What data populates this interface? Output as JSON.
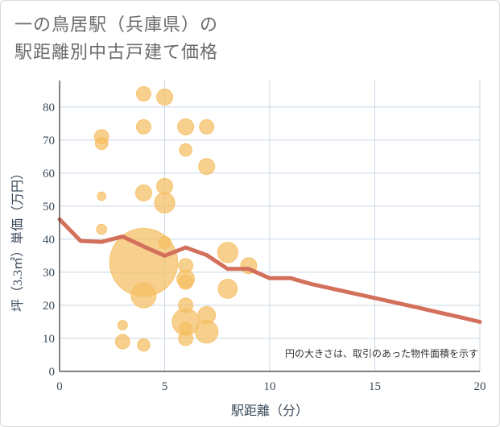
{
  "title_lines": [
    "一の鳥居駅（兵庫県）の",
    "駅距離別中古戸建て価格"
  ],
  "colors": {
    "bubble": "#f5be62",
    "line": "#d3705c",
    "grid": "#c9d8e6",
    "axis": "#333333"
  },
  "chart_data": {
    "type": "scatter",
    "title": "一の鳥居駅（兵庫県）の駅距離別中古戸建て価格",
    "xlabel": "駅距離（分）",
    "ylabel": "坪（3.3㎡）単価（万円）",
    "xlim": [
      0,
      20
    ],
    "ylim": [
      0,
      88
    ],
    "x_ticks": [
      0,
      5,
      10,
      15,
      20
    ],
    "y_ticks": [
      0,
      10,
      20,
      30,
      40,
      50,
      60,
      70,
      80
    ],
    "note": "円の大きさは、取引のあった物件面積を示す",
    "bubbles": [
      {
        "x": 2,
        "y": 71,
        "size": 2
      },
      {
        "x": 2,
        "y": 69,
        "size": 1.5
      },
      {
        "x": 2,
        "y": 53,
        "size": 0.7
      },
      {
        "x": 2,
        "y": 43,
        "size": 1
      },
      {
        "x": 3,
        "y": 14,
        "size": 0.9
      },
      {
        "x": 3,
        "y": 9,
        "size": 2
      },
      {
        "x": 4,
        "y": 84,
        "size": 2
      },
      {
        "x": 4,
        "y": 74,
        "size": 2
      },
      {
        "x": 4,
        "y": 54,
        "size": 2.5
      },
      {
        "x": 4,
        "y": 33,
        "size": 45
      },
      {
        "x": 4,
        "y": 23,
        "size": 6
      },
      {
        "x": 4,
        "y": 8,
        "size": 1.5
      },
      {
        "x": 5,
        "y": 83,
        "size": 2.5
      },
      {
        "x": 5,
        "y": 56,
        "size": 2.5
      },
      {
        "x": 5,
        "y": 51,
        "size": 4
      },
      {
        "x": 5,
        "y": 39,
        "size": 1.5
      },
      {
        "x": 6,
        "y": 74,
        "size": 2.5
      },
      {
        "x": 6,
        "y": 67,
        "size": 1.5
      },
      {
        "x": 6,
        "y": 32,
        "size": 2
      },
      {
        "x": 6,
        "y": 28,
        "size": 3
      },
      {
        "x": 6,
        "y": 27,
        "size": 2
      },
      {
        "x": 6,
        "y": 20,
        "size": 2
      },
      {
        "x": 6,
        "y": 15,
        "size": 7
      },
      {
        "x": 6,
        "y": 13,
        "size": 1.5
      },
      {
        "x": 6,
        "y": 10,
        "size": 2
      },
      {
        "x": 7,
        "y": 74,
        "size": 2
      },
      {
        "x": 7,
        "y": 62,
        "size": 2.5
      },
      {
        "x": 7,
        "y": 17,
        "size": 3
      },
      {
        "x": 7,
        "y": 12,
        "size": 5
      },
      {
        "x": 8,
        "y": 36,
        "size": 4
      },
      {
        "x": 8,
        "y": 25,
        "size": 3.5
      },
      {
        "x": 9,
        "y": 32,
        "size": 2.5
      }
    ],
    "trend_line": {
      "x": [
        0,
        1,
        2,
        3,
        4,
        5,
        6,
        7,
        8,
        9,
        10,
        11,
        12,
        13,
        14,
        15,
        16,
        17,
        18,
        19,
        20
      ],
      "y": [
        46,
        39.5,
        39.2,
        40.8,
        37.8,
        35,
        37.5,
        35.2,
        31,
        31,
        28.2,
        28.2,
        26.4,
        25,
        23.6,
        22.2,
        20.8,
        19.4,
        17.9,
        16.5,
        15
      ]
    }
  }
}
